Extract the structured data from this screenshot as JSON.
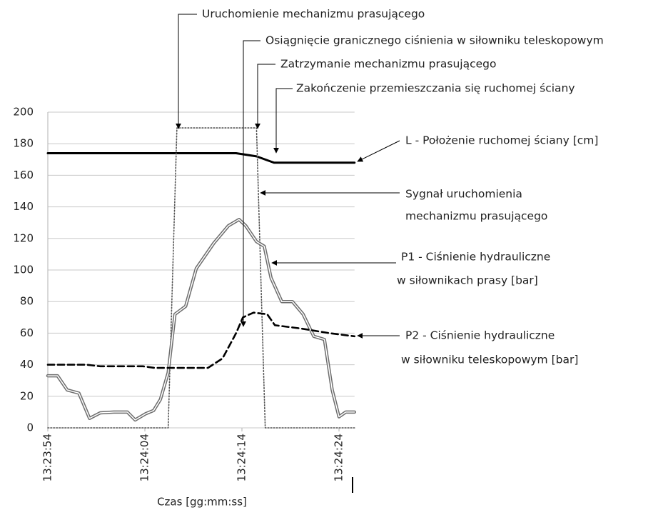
{
  "chart_data": {
    "type": "line",
    "xlabel": "Czas [gg:mm:ss]",
    "xlim": [
      "13:23:54",
      "13:24:25.6"
    ],
    "xticks": [
      "13:23:54",
      "13:24:04",
      "13:24:14",
      "13:24:24"
    ],
    "ylim": [
      0,
      200
    ],
    "yticks": [
      0,
      20,
      40,
      60,
      80,
      100,
      120,
      140,
      160,
      180,
      200
    ],
    "grid": true,
    "series": [
      {
        "color": "#000000",
        "style": "solid",
        "x": [
          "13:23:54",
          "13:24:13.4",
          "13:24:15.5",
          "13:24:17.3",
          "13:24:25.6"
        ],
        "values": [
          174,
          174,
          172,
          168,
          168
        ]
      },
      {
        "color": "#555555",
        "style": "dotted",
        "x": [
          "13:23:54",
          "13:24:06.4",
          "13:24:07.3",
          "13:24:15.5",
          "13:24:16.4",
          "13:24:25.6"
        ],
        "values": [
          0,
          0,
          190,
          190,
          0,
          0
        ]
      },
      {
        "color": "#6e6e6e",
        "style": "double",
        "x": [
          "13:23:54",
          "13:23:55",
          "13:23:56",
          "13:23:57.2",
          "13:23:58.3",
          "13:23:59.4",
          "13:24:00.8",
          "13:24:02.2",
          "13:24:03",
          "13:24:04.1",
          "13:24:04.9",
          "13:24:05.6",
          "13:24:06.4",
          "13:24:07.1",
          "13:24:08.2",
          "13:24:09.3",
          "13:24:11.1",
          "13:24:12.6",
          "13:24:13.7",
          "13:24:14.4",
          "13:24:15.5",
          "13:24:16.3",
          "13:24:17",
          "13:24:18.1",
          "13:24:19.2",
          "13:24:20.3",
          "13:24:21.4",
          "13:24:22.5",
          "13:24:23.3",
          "13:24:24",
          "13:24:24.7",
          "13:24:25.6"
        ],
        "values": [
          33,
          33,
          24,
          22,
          6,
          9.5,
          10,
          10,
          5,
          9,
          11,
          18,
          35,
          72,
          77,
          101,
          117,
          128,
          132,
          128,
          118,
          115,
          95,
          80,
          80,
          72,
          58,
          56,
          24,
          7,
          10,
          10
        ]
      },
      {
        "color": "#000000",
        "style": "dashed",
        "x": [
          "13:23:54",
          "13:23:58",
          "13:23:59.4",
          "13:24:03.8",
          "13:24:05",
          "13:24:10.5",
          "13:24:12",
          "13:24:13.4",
          "13:24:14.1",
          "13:24:15.2",
          "13:24:16.6",
          "13:24:17.4",
          "13:24:20",
          "13:24:23",
          "13:24:25.6"
        ],
        "values": [
          40,
          40,
          39,
          39,
          38,
          38,
          44,
          60,
          70,
          73,
          72,
          65,
          63,
          60,
          58
        ]
      }
    ],
    "annotations": [
      {
        "lines": [
          "Uruchomienie mechanizmu prasującego"
        ]
      },
      {
        "lines": [
          "Osiągnięcie granicznego ciśnienia w siłowniku teleskopowym"
        ]
      },
      {
        "lines": [
          "Zatrzymanie mechanizmu prasującego"
        ]
      },
      {
        "lines": [
          "Zakończenie przemieszczania się ruchomej ściany"
        ]
      },
      {
        "lines": [
          "L - Położenie ruchomej ściany [cm]"
        ]
      },
      {
        "lines": [
          "Sygnał uruchomienia",
          "mechanizmu prasującego"
        ]
      },
      {
        "lines": [
          "P1 - Ciśnienie hydrauliczne",
          "w siłownikach prasy [bar]"
        ]
      },
      {
        "lines": [
          "P2 - Ciśnienie hydrauliczne",
          "w siłowniku teleskopowym  [bar]"
        ]
      }
    ]
  }
}
